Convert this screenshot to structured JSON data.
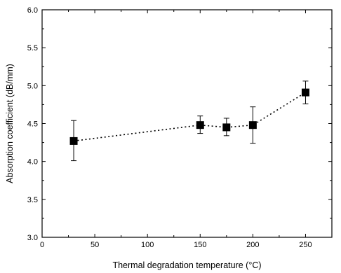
{
  "chart_data": {
    "type": "scatter",
    "xlabel": "Thermal degradation temperature (°C)",
    "ylabel": "Absorption coefficient (dB/mm)",
    "xlim": [
      0,
      275
    ],
    "ylim": [
      3.0,
      6.0
    ],
    "x_ticks": [
      0,
      50,
      100,
      150,
      200,
      250
    ],
    "y_ticks": [
      3.0,
      3.5,
      4.0,
      4.5,
      5.0,
      5.5,
      6.0
    ],
    "x_tick_labels": [
      "0",
      "50",
      "100",
      "150",
      "200",
      "250"
    ],
    "y_tick_labels": [
      "3.0",
      "3.5",
      "4.0",
      "4.5",
      "5.0",
      "5.5",
      "6.0"
    ],
    "grid": false,
    "legend": "none",
    "series": [
      {
        "marker": "square",
        "line": "dotted",
        "color": "#000000",
        "points": [
          {
            "x": 30,
            "y": 4.27,
            "err_low": 4.01,
            "err_high": 4.54
          },
          {
            "x": 150,
            "y": 4.48,
            "err_low": 4.37,
            "err_high": 4.6
          },
          {
            "x": 175,
            "y": 4.45,
            "err_low": 4.34,
            "err_high": 4.57
          },
          {
            "x": 200,
            "y": 4.48,
            "err_low": 4.24,
            "err_high": 4.72
          },
          {
            "x": 250,
            "y": 4.91,
            "err_low": 4.76,
            "err_high": 5.06
          }
        ]
      }
    ]
  }
}
